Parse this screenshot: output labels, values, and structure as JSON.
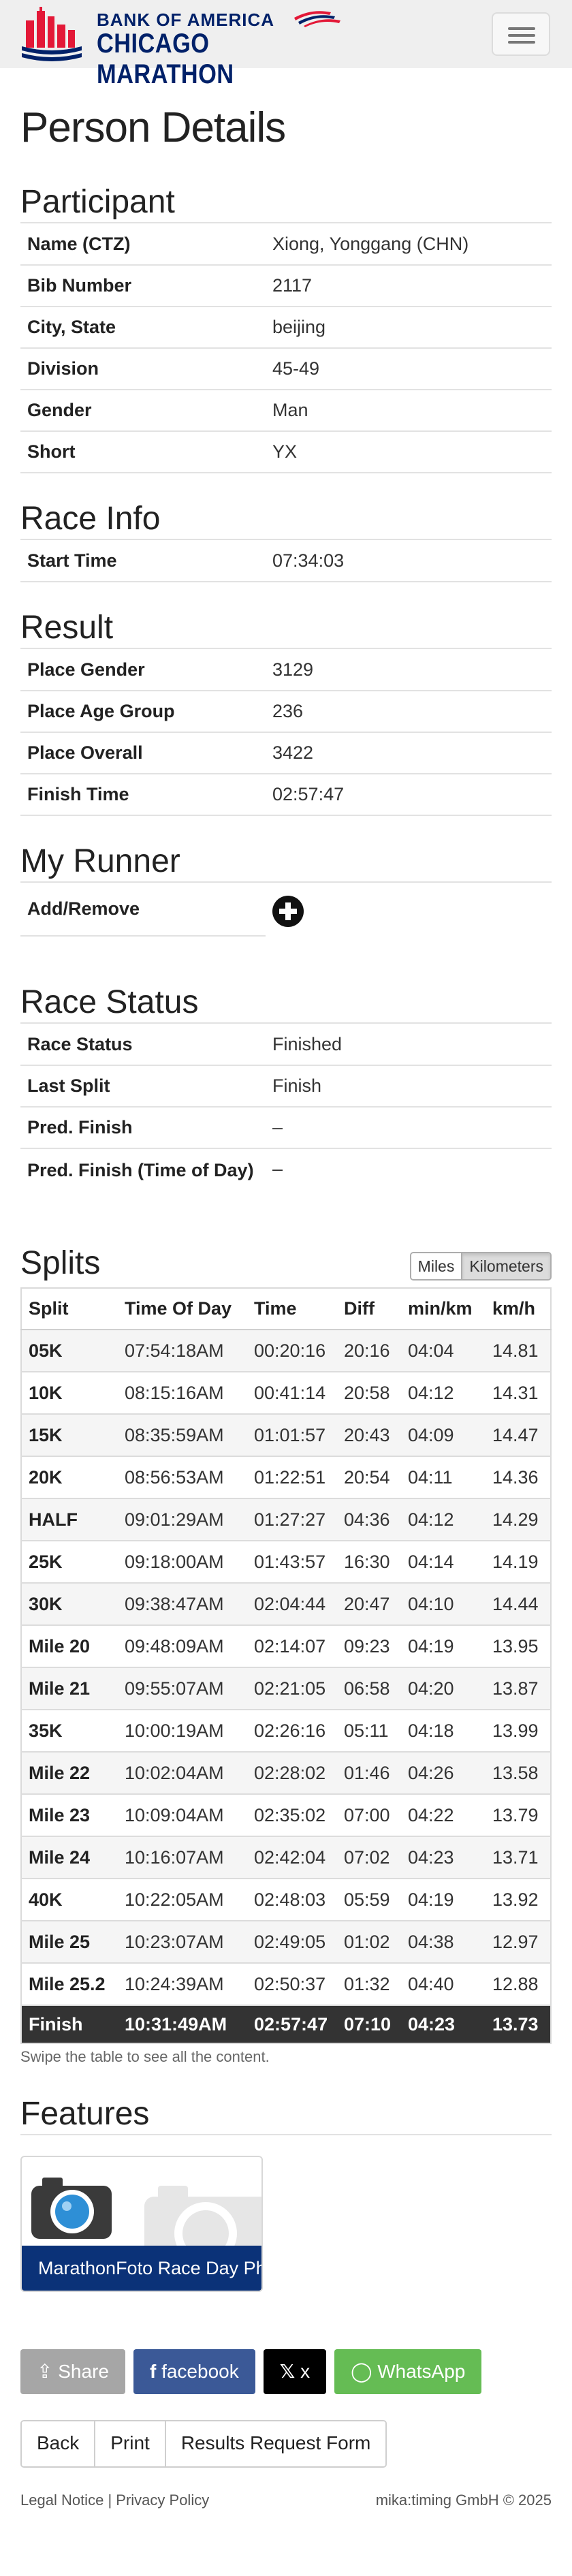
{
  "header": {
    "brand_line1": "BANK OF AMERICA",
    "brand_line2": "CHICAGO MARATHON",
    "menu_icon": "hamburger-icon"
  },
  "page_title": "Person Details",
  "participant": {
    "heading": "Participant",
    "rows": [
      {
        "label": "Name (CTZ)",
        "value": "Xiong, Yonggang (CHN)"
      },
      {
        "label": "Bib Number",
        "value": "2117"
      },
      {
        "label": "City, State",
        "value": "beijing"
      },
      {
        "label": "Division",
        "value": "45-49"
      },
      {
        "label": "Gender",
        "value": "Man"
      },
      {
        "label": "Short",
        "value": "YX"
      }
    ]
  },
  "race_info": {
    "heading": "Race Info",
    "rows": [
      {
        "label": "Start Time",
        "value": "07:34:03"
      }
    ]
  },
  "result": {
    "heading": "Result",
    "rows": [
      {
        "label": "Place Gender",
        "value": "3129"
      },
      {
        "label": "Place Age Group",
        "value": "236"
      },
      {
        "label": "Place Overall",
        "value": "3422"
      },
      {
        "label": "Finish Time",
        "value": "02:57:47"
      }
    ]
  },
  "my_runner": {
    "heading": "My Runner",
    "label": "Add/Remove",
    "icon": "plus-circle-icon"
  },
  "race_status": {
    "heading": "Race Status",
    "rows": [
      {
        "label": "Race Status",
        "value": "Finished"
      },
      {
        "label": "Last Split",
        "value": "Finish"
      },
      {
        "label": "Pred. Finish",
        "value": "–"
      },
      {
        "label": "Pred. Finish (Time of Day)",
        "value": "–"
      }
    ]
  },
  "splits": {
    "heading": "Splits",
    "unit_miles": "Miles",
    "unit_km": "Kilometers",
    "selected_unit": "Kilometers",
    "columns": [
      "Split",
      "Time Of Day",
      "Time",
      "Diff",
      "min/km",
      "km/h"
    ],
    "rows": [
      [
        "05K",
        "07:54:18AM",
        "00:20:16",
        "20:16",
        "04:04",
        "14.81"
      ],
      [
        "10K",
        "08:15:16AM",
        "00:41:14",
        "20:58",
        "04:12",
        "14.31"
      ],
      [
        "15K",
        "08:35:59AM",
        "01:01:57",
        "20:43",
        "04:09",
        "14.47"
      ],
      [
        "20K",
        "08:56:53AM",
        "01:22:51",
        "20:54",
        "04:11",
        "14.36"
      ],
      [
        "HALF",
        "09:01:29AM",
        "01:27:27",
        "04:36",
        "04:12",
        "14.29"
      ],
      [
        "25K",
        "09:18:00AM",
        "01:43:57",
        "16:30",
        "04:14",
        "14.19"
      ],
      [
        "30K",
        "09:38:47AM",
        "02:04:44",
        "20:47",
        "04:10",
        "14.44"
      ],
      [
        "Mile 20",
        "09:48:09AM",
        "02:14:07",
        "09:23",
        "04:19",
        "13.95"
      ],
      [
        "Mile 21",
        "09:55:07AM",
        "02:21:05",
        "06:58",
        "04:20",
        "13.87"
      ],
      [
        "35K",
        "10:00:19AM",
        "02:26:16",
        "05:11",
        "04:18",
        "13.99"
      ],
      [
        "Mile 22",
        "10:02:04AM",
        "02:28:02",
        "01:46",
        "04:26",
        "13.58"
      ],
      [
        "Mile 23",
        "10:09:04AM",
        "02:35:02",
        "07:00",
        "04:22",
        "13.79"
      ],
      [
        "Mile 24",
        "10:16:07AM",
        "02:42:04",
        "07:02",
        "04:23",
        "13.71"
      ],
      [
        "40K",
        "10:22:05AM",
        "02:48:03",
        "05:59",
        "04:19",
        "13.92"
      ],
      [
        "Mile 25",
        "10:23:07AM",
        "02:49:05",
        "01:02",
        "04:38",
        "12.97"
      ],
      [
        "Mile 25.2",
        "10:24:39AM",
        "02:50:37",
        "01:32",
        "04:40",
        "12.88"
      ]
    ],
    "finish_row": [
      "Finish",
      "10:31:49AM",
      "02:57:47",
      "07:10",
      "04:23",
      "13.73"
    ],
    "swipe_note": "Swipe the table to see all the content."
  },
  "features": {
    "heading": "Features",
    "photo_caption": "MarathonFoto Race Day Photos",
    "icon": "camera-icon"
  },
  "share": {
    "share_label": "Share",
    "facebook_label": "facebook",
    "x_label": "x",
    "whatsapp_label": "WhatsApp"
  },
  "nav": {
    "back": "Back",
    "print": "Print",
    "results_request": "Results Request Form"
  },
  "footer": {
    "legal": "Legal Notice",
    "sep": "|",
    "privacy": "Privacy Policy",
    "copyright": "mika:timing GmbH © 2025"
  },
  "colors": {
    "brand_navy": "#012169",
    "brand_red": "#e31837",
    "finish_row": "#333333",
    "facebook": "#3b5997",
    "whatsapp": "#65bc54",
    "photo_caption_bg": "#0b3278"
  }
}
